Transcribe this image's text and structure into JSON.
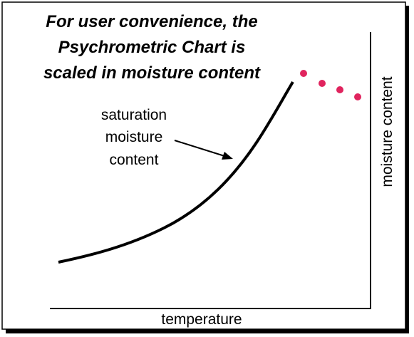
{
  "title": {
    "lines": [
      "For user convenience, the",
      "Psychrometric Chart is",
      "scaled in moisture content"
    ]
  },
  "curve_label": {
    "lines": [
      "saturation",
      "moisture",
      "content"
    ]
  },
  "x_axis_label": "temperature",
  "y_axis_label": "moisture content"
}
